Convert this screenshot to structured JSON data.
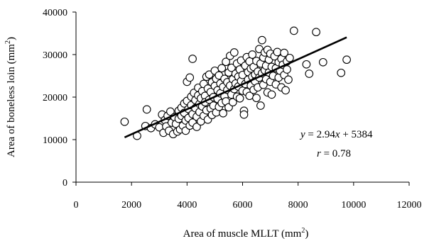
{
  "chart_data": {
    "type": "scatter",
    "title": "",
    "xlabel": "Area of muscle MLLT (mm",
    "xlabel_sup": "2",
    "xlabel_close": ")",
    "ylabel": "Area of boneless loin (mm",
    "ylabel_sup": "2",
    "ylabel_close": ")",
    "xlim": [
      0,
      12000
    ],
    "ylim": [
      0,
      40000
    ],
    "x_ticks": [
      0,
      2000,
      4000,
      6000,
      8000,
      10000,
      12000
    ],
    "x_tick_labels": [
      "0",
      "2000",
      "4000",
      "6000",
      "8000",
      "10000",
      "12000"
    ],
    "y_ticks": [
      0,
      10000,
      20000,
      30000,
      40000
    ],
    "y_tick_labels": [
      "0",
      "10000",
      "20000",
      "30000",
      "40000"
    ],
    "grid": false,
    "legend": "none",
    "trendline": {
      "slope": 2.94,
      "intercept": 5384,
      "x_range": [
        1750,
        9750
      ]
    },
    "annotations": {
      "eq_y": "y",
      "eq_mid": " = 2.94",
      "eq_x": "x",
      "eq_tail": " + 5384",
      "r_r": "r",
      "r_tail": " = 0.78"
    },
    "points": [
      [
        1750,
        14200
      ],
      [
        2200,
        10900
      ],
      [
        2500,
        13200
      ],
      [
        2550,
        17100
      ],
      [
        2700,
        12700
      ],
      [
        2850,
        13600
      ],
      [
        3000,
        12900
      ],
      [
        3100,
        15900
      ],
      [
        3150,
        11600
      ],
      [
        3200,
        14600
      ],
      [
        3250,
        13100
      ],
      [
        3300,
        15600
      ],
      [
        3350,
        12100
      ],
      [
        3400,
        16600
      ],
      [
        3450,
        14000
      ],
      [
        3500,
        11300
      ],
      [
        3550,
        15300
      ],
      [
        3600,
        13700
      ],
      [
        3650,
        11900
      ],
      [
        3700,
        16800
      ],
      [
        3700,
        14900
      ],
      [
        3750,
        12400
      ],
      [
        3800,
        17500
      ],
      [
        3800,
        15600
      ],
      [
        3850,
        13300
      ],
      [
        3900,
        18500
      ],
      [
        3900,
        16300
      ],
      [
        3950,
        14500
      ],
      [
        3950,
        12100
      ],
      [
        4000,
        23600
      ],
      [
        4000,
        19100
      ],
      [
        4050,
        17200
      ],
      [
        4050,
        15100
      ],
      [
        4100,
        24600
      ],
      [
        4100,
        13300
      ],
      [
        4150,
        20100
      ],
      [
        4150,
        18100
      ],
      [
        4200,
        16000
      ],
      [
        4200,
        14000
      ],
      [
        4200,
        29000
      ],
      [
        4250,
        21000
      ],
      [
        4300,
        19300
      ],
      [
        4300,
        17400
      ],
      [
        4350,
        15400
      ],
      [
        4350,
        13000
      ],
      [
        4400,
        22200
      ],
      [
        4400,
        20400
      ],
      [
        4450,
        18400
      ],
      [
        4450,
        16500
      ],
      [
        4500,
        14300
      ],
      [
        4500,
        19700
      ],
      [
        4550,
        21400
      ],
      [
        4550,
        17800
      ],
      [
        4600,
        23100
      ],
      [
        4600,
        15600
      ],
      [
        4650,
        20300
      ],
      [
        4650,
        18800
      ],
      [
        4700,
        24800
      ],
      [
        4700,
        16900
      ],
      [
        4750,
        22000
      ],
      [
        4750,
        14700
      ],
      [
        4800,
        25300
      ],
      [
        4800,
        19400
      ],
      [
        4850,
        17300
      ],
      [
        4850,
        21200
      ],
      [
        4900,
        23500
      ],
      [
        4900,
        15800
      ],
      [
        4950,
        20000
      ],
      [
        4950,
        18000
      ],
      [
        5000,
        26200
      ],
      [
        5000,
        22600
      ],
      [
        5050,
        24300
      ],
      [
        5050,
        16400
      ],
      [
        5100,
        21600
      ],
      [
        5100,
        19600
      ],
      [
        5150,
        25100
      ],
      [
        5150,
        17700
      ],
      [
        5200,
        23200
      ],
      [
        5200,
        20900
      ],
      [
        5250,
        18600
      ],
      [
        5250,
        26800
      ],
      [
        5300,
        22400
      ],
      [
        5300,
        16200
      ],
      [
        5350,
        24300
      ],
      [
        5350,
        20200
      ],
      [
        5400,
        28300
      ],
      [
        5400,
        19000
      ],
      [
        5450,
        23500
      ],
      [
        5450,
        21700
      ],
      [
        5500,
        25800
      ],
      [
        5500,
        17600
      ],
      [
        5550,
        29700
      ],
      [
        5550,
        22700
      ],
      [
        5600,
        20600
      ],
      [
        5600,
        26900
      ],
      [
        5650,
        24200
      ],
      [
        5650,
        18800
      ],
      [
        5700,
        30500
      ],
      [
        5700,
        21900
      ],
      [
        5750,
        25500
      ],
      [
        5750,
        23200
      ],
      [
        5800,
        27900
      ],
      [
        5800,
        20100
      ],
      [
        5850,
        24800
      ],
      [
        5850,
        22500
      ],
      [
        5900,
        26500
      ],
      [
        5900,
        19700
      ],
      [
        5950,
        23800
      ],
      [
        5950,
        28600
      ],
      [
        6000,
        21500
      ],
      [
        6000,
        25200
      ],
      [
        6050,
        16800
      ],
      [
        6050,
        15900
      ],
      [
        6100,
        27400
      ],
      [
        6100,
        23100
      ],
      [
        6150,
        29400
      ],
      [
        6150,
        21200
      ],
      [
        6200,
        25900
      ],
      [
        6200,
        24100
      ],
      [
        6250,
        28400
      ],
      [
        6250,
        20300
      ],
      [
        6300,
        26700
      ],
      [
        6300,
        22700
      ],
      [
        6350,
        24800
      ],
      [
        6350,
        30000
      ],
      [
        6400,
        27100
      ],
      [
        6400,
        21700
      ],
      [
        6450,
        25300
      ],
      [
        6450,
        23700
      ],
      [
        6500,
        28500
      ],
      [
        6500,
        19800
      ],
      [
        6550,
        26000
      ],
      [
        6550,
        22300
      ],
      [
        6600,
        31300
      ],
      [
        6600,
        24600
      ],
      [
        6650,
        27900
      ],
      [
        6650,
        18000
      ],
      [
        6700,
        33400
      ],
      [
        6700,
        25600
      ],
      [
        6750,
        29300
      ],
      [
        6750,
        22900
      ],
      [
        6800,
        26300
      ],
      [
        6800,
        30500
      ],
      [
        6850,
        24200
      ],
      [
        6850,
        27400
      ],
      [
        6900,
        31100
      ],
      [
        6900,
        21100
      ],
      [
        6950,
        25800
      ],
      [
        6950,
        28800
      ],
      [
        7000,
        23600
      ],
      [
        7000,
        30200
      ],
      [
        7050,
        27100
      ],
      [
        7050,
        20600
      ],
      [
        7100,
        25000
      ],
      [
        7150,
        29600
      ],
      [
        7200,
        26800
      ],
      [
        7200,
        23000
      ],
      [
        7250,
        30600
      ],
      [
        7300,
        28200
      ],
      [
        7300,
        24600
      ],
      [
        7350,
        26200
      ],
      [
        7400,
        29000
      ],
      [
        7400,
        22300
      ],
      [
        7450,
        27600
      ],
      [
        7500,
        25200
      ],
      [
        7500,
        30400
      ],
      [
        7550,
        21600
      ],
      [
        7600,
        28400
      ],
      [
        7600,
        26500
      ],
      [
        7650,
        24100
      ],
      [
        7700,
        29200
      ],
      [
        7850,
        35600
      ],
      [
        8300,
        27700
      ],
      [
        8400,
        25500
      ],
      [
        8650,
        35300
      ],
      [
        8900,
        28200
      ],
      [
        9550,
        25700
      ],
      [
        9750,
        28800
      ]
    ]
  }
}
